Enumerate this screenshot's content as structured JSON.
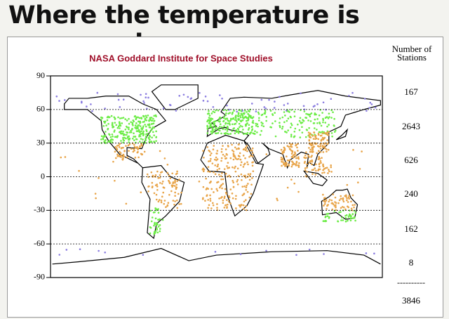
{
  "header": {
    "title": "Where the temperature is measured"
  },
  "map": {
    "source": "NASA Goddard Institute for Space Studies",
    "lat_ticks": [
      90,
      60,
      30,
      0,
      -30,
      -60,
      -90
    ]
  },
  "stations": {
    "heading": "Number of Stations",
    "counts": [
      167,
      2643,
      626,
      240,
      162,
      8
    ],
    "total": 3846
  }
}
